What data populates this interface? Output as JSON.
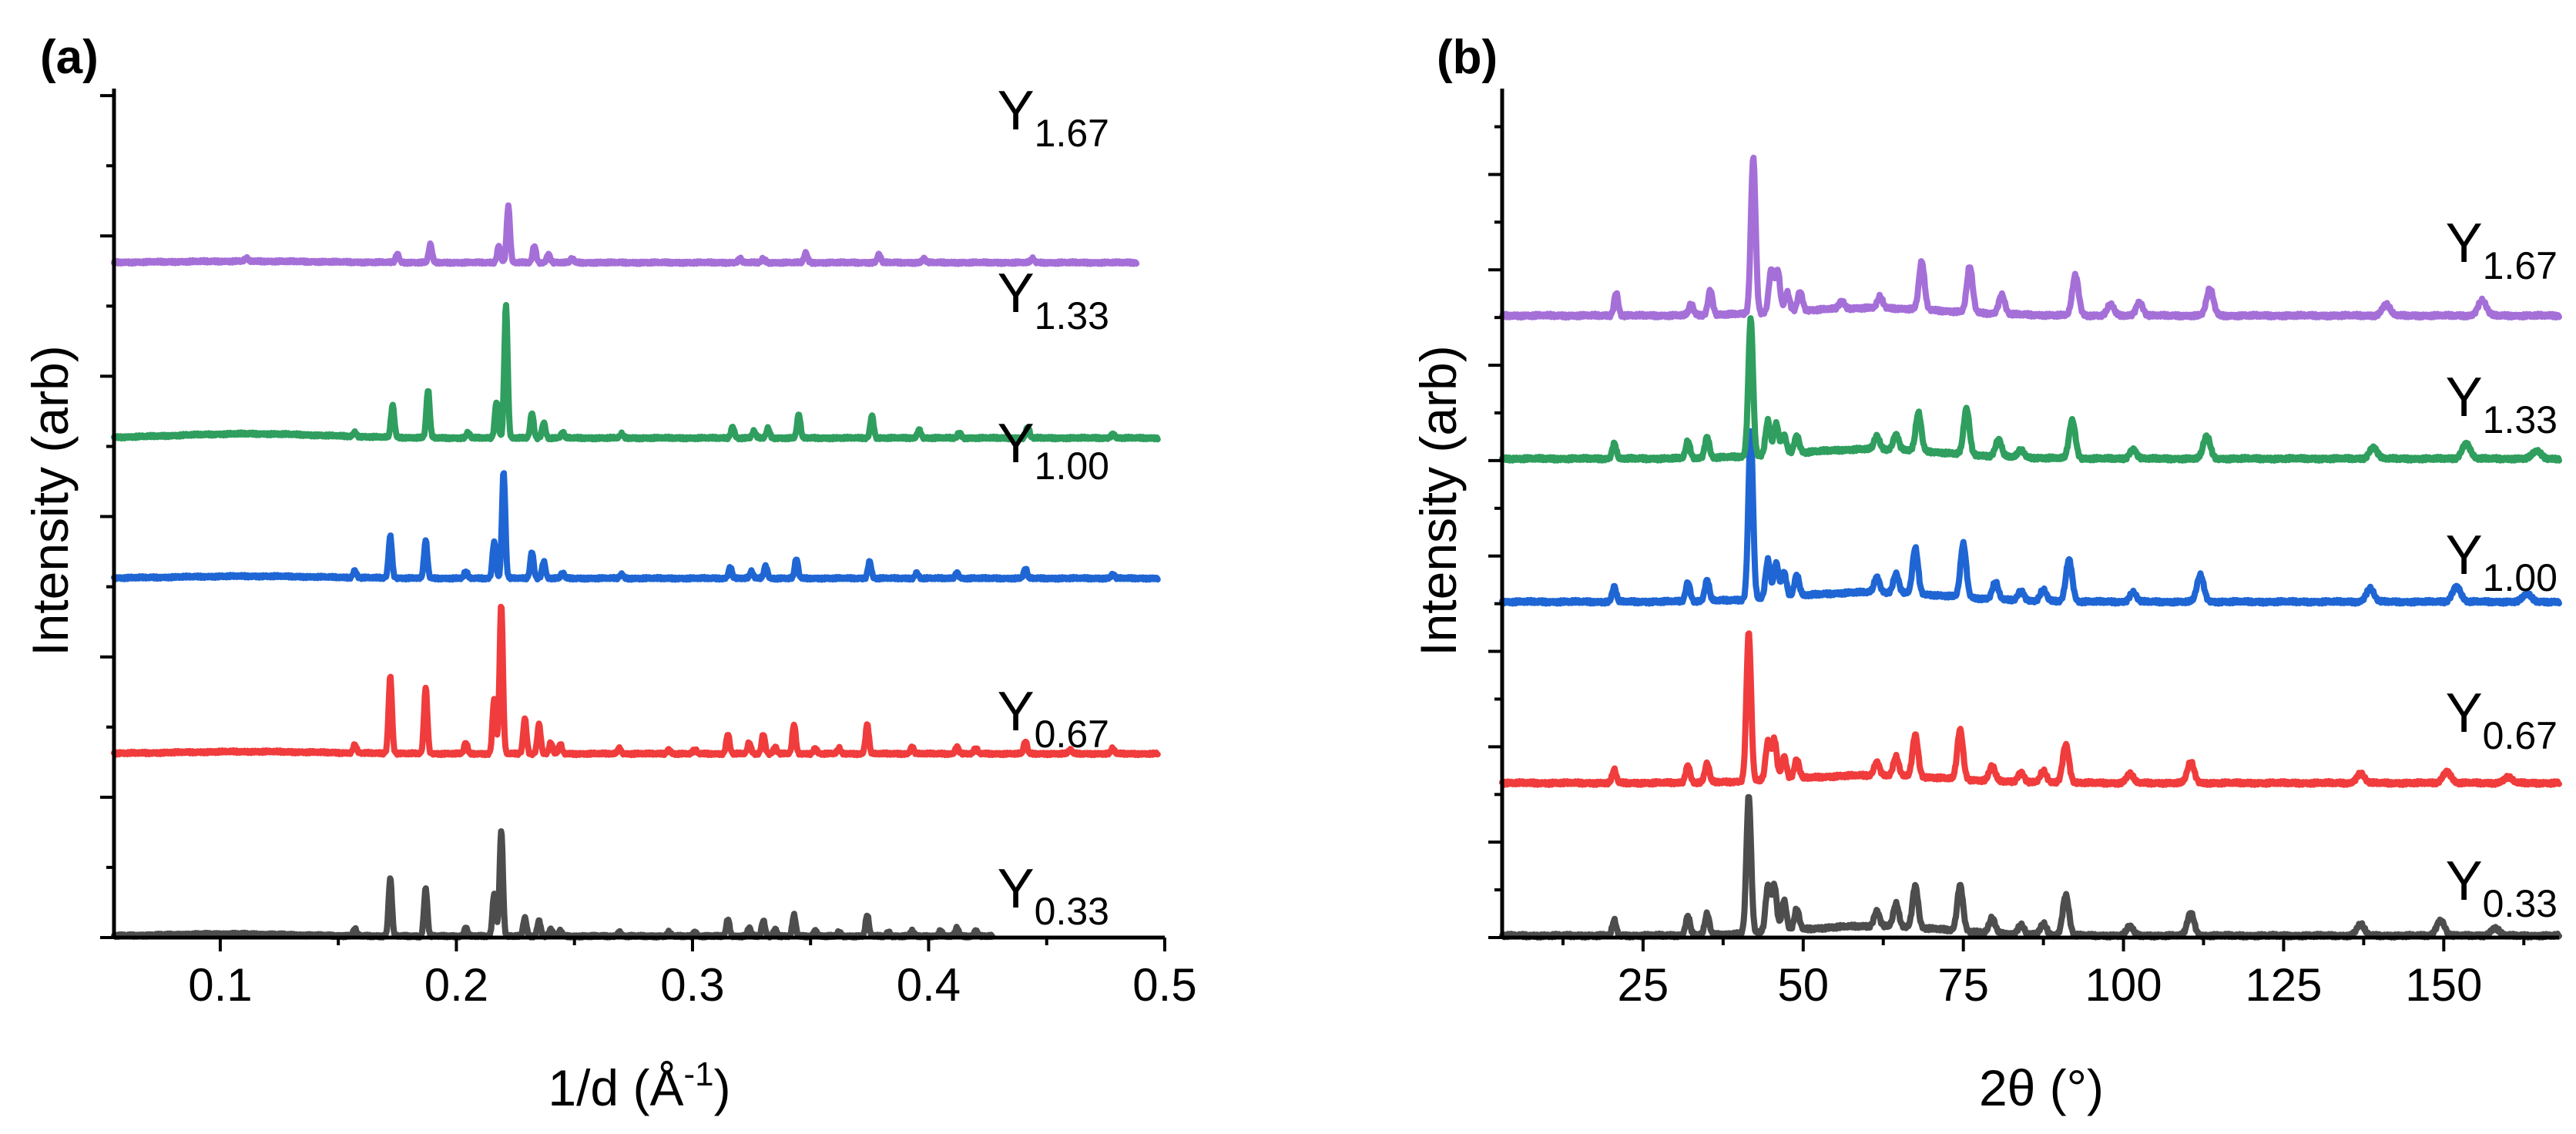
{
  "chart_data": [
    {
      "type": "line",
      "panel_label": "(a)",
      "xlabel_base": "1/d (Å",
      "xlabel_sup": "-1",
      "xlabel_end": ")",
      "ylabel": "Intensity (arb)",
      "xlim": [
        0.055,
        0.5
      ],
      "xticks": [
        0.1,
        0.2,
        0.3,
        0.4,
        0.5
      ],
      "xtick_labels": [
        "0.1",
        "0.2",
        "0.3",
        "0.4",
        "0.5"
      ],
      "series": [
        {
          "name": "Y0.33",
          "base": "Y",
          "sub": "0.33",
          "color": "#4d4d4d",
          "offset": 0.0,
          "scale": 1.0,
          "x_end": 0.427,
          "peaks": [
            [
              0.157,
              0.05
            ],
            [
              0.172,
              0.41
            ],
            [
              0.187,
              0.34
            ],
            [
              0.204,
              0.06
            ],
            [
              0.216,
              0.3
            ],
            [
              0.219,
              0.75
            ],
            [
              0.229,
              0.13
            ],
            [
              0.235,
              0.11
            ],
            [
              0.24,
              0.05
            ],
            [
              0.244,
              0.04
            ],
            [
              0.269,
              0.03
            ],
            [
              0.29,
              0.03
            ],
            [
              0.301,
              0.03
            ],
            [
              0.315,
              0.12
            ],
            [
              0.324,
              0.06
            ],
            [
              0.33,
              0.11
            ],
            [
              0.335,
              0.05
            ],
            [
              0.343,
              0.15
            ],
            [
              0.352,
              0.04
            ],
            [
              0.362,
              0.03
            ],
            [
              0.374,
              0.15
            ],
            [
              0.383,
              0.03
            ],
            [
              0.393,
              0.04
            ],
            [
              0.405,
              0.04
            ],
            [
              0.412,
              0.06
            ],
            [
              0.42,
              0.04
            ]
          ]
        },
        {
          "name": "Y0.67",
          "base": "Y",
          "sub": "0.67",
          "color": "#f03c3c",
          "offset": 1.3,
          "scale": 1.0,
          "x_end": 0.497,
          "peaks": [
            [
              0.157,
              0.06
            ],
            [
              0.172,
              0.55
            ],
            [
              0.187,
              0.47
            ],
            [
              0.204,
              0.08
            ],
            [
              0.216,
              0.39
            ],
            [
              0.219,
              1.07
            ],
            [
              0.229,
              0.25
            ],
            [
              0.235,
              0.21
            ],
            [
              0.24,
              0.08
            ],
            [
              0.244,
              0.07
            ],
            [
              0.269,
              0.04
            ],
            [
              0.29,
              0.03
            ],
            [
              0.301,
              0.03
            ],
            [
              0.315,
              0.14
            ],
            [
              0.324,
              0.08
            ],
            [
              0.33,
              0.14
            ],
            [
              0.335,
              0.05
            ],
            [
              0.343,
              0.21
            ],
            [
              0.352,
              0.04
            ],
            [
              0.362,
              0.04
            ],
            [
              0.374,
              0.21
            ],
            [
              0.393,
              0.05
            ],
            [
              0.412,
              0.05
            ],
            [
              0.42,
              0.04
            ],
            [
              0.441,
              0.09
            ],
            [
              0.46,
              0.03
            ],
            [
              0.478,
              0.04
            ]
          ]
        },
        {
          "name": "Y1.00",
          "base": "Y",
          "sub": "1.00",
          "color": "#1f66d4",
          "offset": 2.55,
          "scale": 1.0,
          "x_end": 0.497,
          "peaks": [
            [
              0.157,
              0.05
            ],
            [
              0.172,
              0.3
            ],
            [
              0.187,
              0.27
            ],
            [
              0.204,
              0.05
            ],
            [
              0.216,
              0.26
            ],
            [
              0.22,
              0.76
            ],
            [
              0.232,
              0.19
            ],
            [
              0.237,
              0.12
            ],
            [
              0.245,
              0.04
            ],
            [
              0.27,
              0.03
            ],
            [
              0.316,
              0.08
            ],
            [
              0.325,
              0.05
            ],
            [
              0.331,
              0.09
            ],
            [
              0.344,
              0.14
            ],
            [
              0.375,
              0.12
            ],
            [
              0.395,
              0.04
            ],
            [
              0.412,
              0.04
            ],
            [
              0.441,
              0.07
            ],
            [
              0.478,
              0.03
            ]
          ]
        },
        {
          "name": "Y1.33",
          "base": "Y",
          "sub": "1.33",
          "color": "#2f9e5e",
          "offset": 3.55,
          "scale": 1.0,
          "x_end": 0.497,
          "hump": 0.03,
          "peaks": [
            [
              0.157,
              0.03
            ],
            [
              0.173,
              0.23
            ],
            [
              0.188,
              0.34
            ],
            [
              0.205,
              0.04
            ],
            [
              0.217,
              0.26
            ],
            [
              0.221,
              0.95
            ],
            [
              0.232,
              0.18
            ],
            [
              0.237,
              0.11
            ],
            [
              0.245,
              0.04
            ],
            [
              0.27,
              0.03
            ],
            [
              0.317,
              0.08
            ],
            [
              0.326,
              0.05
            ],
            [
              0.332,
              0.07
            ],
            [
              0.345,
              0.17
            ],
            [
              0.376,
              0.16
            ],
            [
              0.396,
              0.06
            ],
            [
              0.413,
              0.04
            ],
            [
              0.442,
              0.08
            ],
            [
              0.478,
              0.03
            ]
          ]
        },
        {
          "name": "Y1.67",
          "base": "Y",
          "sub": "1.67",
          "color": "#a56fd8",
          "offset": 4.8,
          "scale": 1.0,
          "x_end": 0.488,
          "hump": 0.01,
          "peaks": [
            [
              0.111,
              0.02
            ],
            [
              0.175,
              0.06
            ],
            [
              0.189,
              0.13
            ],
            [
              0.218,
              0.12
            ],
            [
              0.222,
              0.4
            ],
            [
              0.233,
              0.12
            ],
            [
              0.239,
              0.06
            ],
            [
              0.249,
              0.03
            ],
            [
              0.32,
              0.03
            ],
            [
              0.33,
              0.03
            ],
            [
              0.348,
              0.07
            ],
            [
              0.379,
              0.06
            ],
            [
              0.398,
              0.03
            ],
            [
              0.444,
              0.03
            ]
          ]
        }
      ]
    },
    {
      "type": "line",
      "panel_label": "(b)",
      "xlabel": "2θ (°)",
      "ylabel": "Intensity (arb)",
      "xlim": [
        3,
        168
      ],
      "xticks": [
        25,
        50,
        75,
        100,
        125,
        150
      ],
      "xtick_labels": [
        "25",
        "50",
        "75",
        "100",
        "125",
        "150"
      ],
      "series": [
        {
          "name": "Y0.33",
          "base": "Y",
          "sub": "0.33",
          "color": "#4d4d4d",
          "offset": 0.0,
          "scale": 1.0,
          "x_end": 168,
          "hump": 0.05,
          "peaks": [
            [
              20.5,
              0.08
            ],
            [
              32.0,
              0.1
            ],
            [
              35.0,
              0.11
            ],
            [
              41.5,
              0.72
            ],
            [
              44.5,
              0.24
            ],
            [
              45.5,
              0.24
            ],
            [
              47.0,
              0.16
            ],
            [
              49.0,
              0.11
            ],
            [
              61.5,
              0.08
            ],
            [
              64.5,
              0.12
            ],
            [
              67.5,
              0.22
            ],
            [
              74.5,
              0.24
            ],
            [
              79.5,
              0.08
            ],
            [
              84.0,
              0.05
            ],
            [
              87.5,
              0.06
            ],
            [
              91.0,
              0.21
            ],
            [
              101.0,
              0.05
            ],
            [
              110.5,
              0.12
            ],
            [
              137.0,
              0.06
            ],
            [
              149.5,
              0.08
            ],
            [
              158.0,
              0.04
            ]
          ]
        },
        {
          "name": "Y0.67",
          "base": "Y",
          "sub": "0.67",
          "color": "#f03c3c",
          "offset": 0.8,
          "scale": 1.0,
          "x_end": 168,
          "hump": 0.04,
          "peaks": [
            [
              20.5,
              0.07
            ],
            [
              32.0,
              0.09
            ],
            [
              35.0,
              0.1
            ],
            [
              41.5,
              0.78
            ],
            [
              44.5,
              0.2
            ],
            [
              45.5,
              0.21
            ],
            [
              47.0,
              0.12
            ],
            [
              49.0,
              0.1
            ],
            [
              61.5,
              0.07
            ],
            [
              64.5,
              0.1
            ],
            [
              67.5,
              0.22
            ],
            [
              74.5,
              0.26
            ],
            [
              79.5,
              0.08
            ],
            [
              84.0,
              0.05
            ],
            [
              87.5,
              0.06
            ],
            [
              91.0,
              0.2
            ],
            [
              101.0,
              0.05
            ],
            [
              110.5,
              0.11
            ],
            [
              137.0,
              0.05
            ],
            [
              150.5,
              0.06
            ],
            [
              160.0,
              0.03
            ]
          ]
        },
        {
          "name": "Y1.00",
          "base": "Y",
          "sub": "1.00",
          "color": "#1f66d4",
          "offset": 1.75,
          "scale": 1.0,
          "x_end": 168,
          "hump": 0.05,
          "peaks": [
            [
              20.5,
              0.08
            ],
            [
              32.0,
              0.1
            ],
            [
              35.0,
              0.11
            ],
            [
              41.8,
              0.88
            ],
            [
              44.5,
              0.2
            ],
            [
              45.8,
              0.18
            ],
            [
              47.0,
              0.13
            ],
            [
              49.0,
              0.11
            ],
            [
              61.5,
              0.08
            ],
            [
              64.5,
              0.1
            ],
            [
              67.5,
              0.24
            ],
            [
              75.0,
              0.28
            ],
            [
              80.0,
              0.09
            ],
            [
              84.0,
              0.05
            ],
            [
              87.5,
              0.06
            ],
            [
              91.5,
              0.22
            ],
            [
              101.5,
              0.05
            ],
            [
              112.0,
              0.14
            ],
            [
              138.5,
              0.07
            ],
            [
              152.0,
              0.08
            ],
            [
              163.0,
              0.04
            ]
          ]
        },
        {
          "name": "Y1.33",
          "base": "Y",
          "sub": "1.33",
          "color": "#2f9e5e",
          "offset": 2.5,
          "scale": 1.0,
          "x_end": 168,
          "hump": 0.05,
          "peaks": [
            [
              20.5,
              0.08
            ],
            [
              32.0,
              0.09
            ],
            [
              35.0,
              0.11
            ],
            [
              41.8,
              0.72
            ],
            [
              44.5,
              0.18
            ],
            [
              45.8,
              0.16
            ],
            [
              47.0,
              0.1
            ],
            [
              49.0,
              0.09
            ],
            [
              61.5,
              0.07
            ],
            [
              64.5,
              0.08
            ],
            [
              68.0,
              0.2
            ],
            [
              75.5,
              0.24
            ],
            [
              80.5,
              0.09
            ],
            [
              84.0,
              0.04
            ],
            [
              92.0,
              0.2
            ],
            [
              101.5,
              0.05
            ],
            [
              113.0,
              0.12
            ],
            [
              139.0,
              0.06
            ],
            [
              153.5,
              0.08
            ],
            [
              164.5,
              0.04
            ]
          ]
        },
        {
          "name": "Y1.67",
          "base": "Y",
          "sub": "1.67",
          "color": "#a56fd8",
          "offset": 3.25,
          "scale": 1.0,
          "x_end": 168,
          "hump": 0.04,
          "peaks": [
            [
              20.8,
              0.12
            ],
            [
              32.5,
              0.06
            ],
            [
              35.5,
              0.13
            ],
            [
              42.2,
              0.82
            ],
            [
              45.0,
              0.22
            ],
            [
              46.0,
              0.22
            ],
            [
              47.5,
              0.1
            ],
            [
              49.5,
              0.1
            ],
            [
              56.0,
              0.04
            ],
            [
              62.0,
              0.06
            ],
            [
              68.5,
              0.25
            ],
            [
              76.0,
              0.24
            ],
            [
              81.0,
              0.1
            ],
            [
              92.5,
              0.21
            ],
            [
              98.0,
              0.06
            ],
            [
              102.5,
              0.07
            ],
            [
              113.5,
              0.14
            ],
            [
              141.0,
              0.06
            ],
            [
              156.0,
              0.08
            ]
          ]
        }
      ]
    }
  ]
}
